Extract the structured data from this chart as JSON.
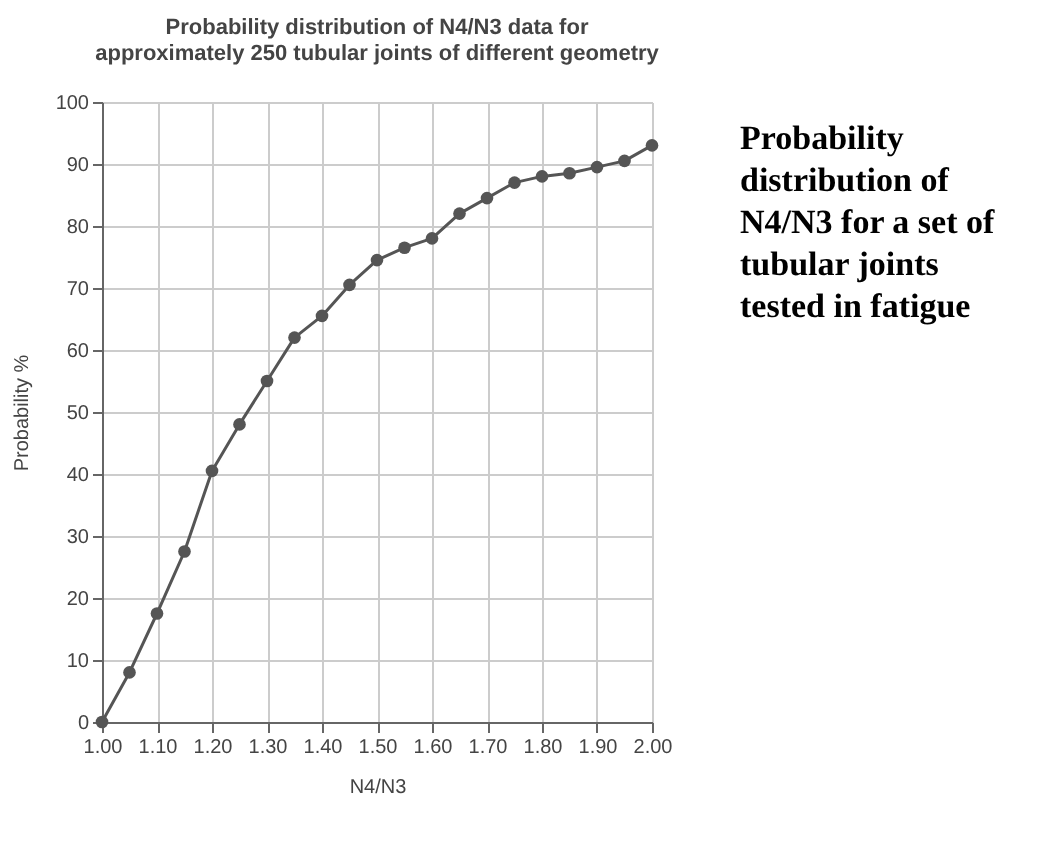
{
  "chart_data": {
    "type": "line",
    "title": "Probability distribution of N4/N3 data for approximately 250 tubular joints of different geometry",
    "xlabel": "N4/N3",
    "ylabel": "Probability %",
    "x": [
      1.0,
      1.05,
      1.1,
      1.15,
      1.2,
      1.25,
      1.3,
      1.35,
      1.4,
      1.45,
      1.5,
      1.55,
      1.6,
      1.65,
      1.7,
      1.75,
      1.8,
      1.85,
      1.9,
      1.95,
      2.0
    ],
    "series": [
      {
        "color": "#555555",
        "values": [
          0,
          8,
          17.5,
          27.5,
          40.5,
          48,
          55,
          62,
          65.5,
          70.5,
          74.5,
          76.5,
          78,
          82,
          84.5,
          87,
          88,
          88.5,
          89.5,
          90.5,
          93
        ]
      }
    ],
    "xlim": [
      1.0,
      2.0
    ],
    "xticks": [
      {
        "value": 1.0,
        "label": "1.00"
      },
      {
        "value": 1.1,
        "label": "1.10"
      },
      {
        "value": 1.2,
        "label": "1.20"
      },
      {
        "value": 1.3,
        "label": "1.30"
      },
      {
        "value": 1.4,
        "label": "1.40"
      },
      {
        "value": 1.5,
        "label": "1.50"
      },
      {
        "value": 1.6,
        "label": "1.60"
      },
      {
        "value": 1.7,
        "label": "1.70"
      },
      {
        "value": 1.8,
        "label": "1.80"
      },
      {
        "value": 1.9,
        "label": "1.90"
      },
      {
        "value": 2.0,
        "label": "2.00"
      }
    ],
    "ylim": [
      0,
      100
    ],
    "yticks": [
      0,
      10,
      20,
      30,
      40,
      50,
      60,
      70,
      80,
      90,
      100
    ],
    "grid": true,
    "marker": "circle",
    "line_style": "solid",
    "annotations": [
      "Probability distribution of N4/N3 for a set of tubular joints tested in fatigue"
    ]
  }
}
